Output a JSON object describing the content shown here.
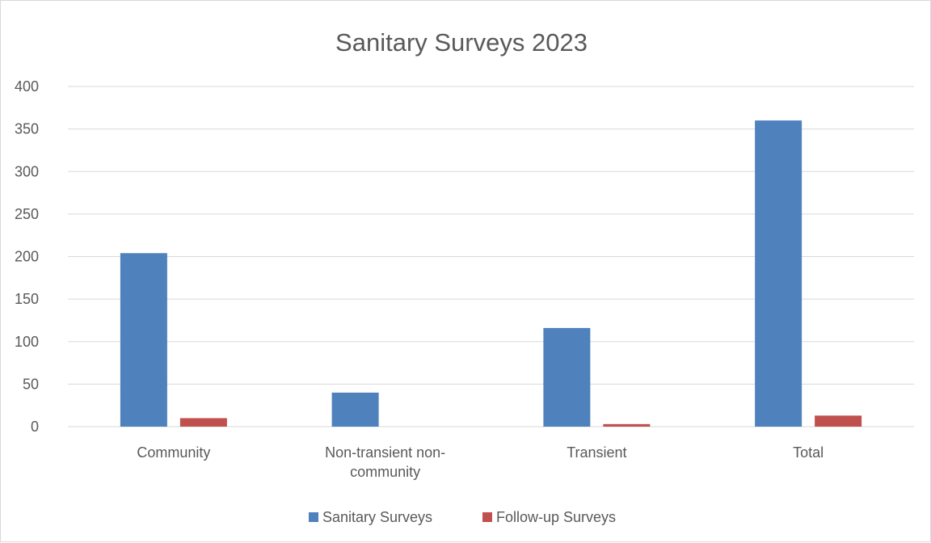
{
  "chart_data": {
    "type": "bar",
    "title": "Sanitary Surveys 2023",
    "xlabel": "",
    "ylabel": "",
    "categories": [
      [
        "Community"
      ],
      [
        "Non-transient non-",
        "community"
      ],
      [
        "Transient"
      ],
      [
        "Total"
      ]
    ],
    "series": [
      {
        "name": "Sanitary Surveys",
        "color": "#4f81bd",
        "values": [
          204,
          40,
          116,
          360
        ]
      },
      {
        "name": "Follow-up Surveys",
        "color": "#c0504d",
        "values": [
          10,
          0,
          3,
          13
        ]
      }
    ],
    "ylim": [
      0,
      400
    ],
    "yticks": [
      0,
      50,
      100,
      150,
      200,
      250,
      300,
      350,
      400
    ],
    "grid": true,
    "legend_position": "bottom"
  }
}
